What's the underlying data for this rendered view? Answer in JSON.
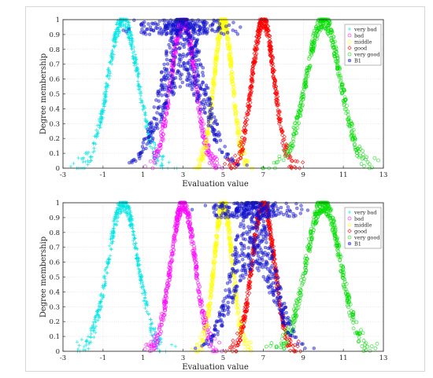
{
  "chart_data": [
    {
      "type": "scatter",
      "xlabel": "Evaluation value",
      "ylabel": "Degree membership",
      "xlim": [
        -3,
        13
      ],
      "ylim": [
        0,
        1
      ],
      "xticks": [
        -3,
        -1,
        1,
        3,
        5,
        7,
        9,
        11,
        13
      ],
      "yticks": [
        0,
        0.1,
        0.2,
        0.3,
        0.4,
        0.5,
        0.6,
        0.7,
        0.8,
        0.9,
        1
      ],
      "grid": true,
      "legend_position": "top-right",
      "series": [
        {
          "name": "very bad",
          "marker": "plus",
          "color": "#00e5e5",
          "center": 0,
          "spread": 0.75
        },
        {
          "name": "bad",
          "marker": "circle",
          "color": "#ff00ff",
          "center": 3,
          "spread": 0.6
        },
        {
          "name": "middle",
          "marker": "circle",
          "color": "#ffff00",
          "center": 5,
          "spread": 0.45
        },
        {
          "name": "good",
          "marker": "diamond",
          "color": "#ff0000",
          "center": 7,
          "spread": 0.55
        },
        {
          "name": "very good",
          "marker": "circle",
          "color": "#00dd00",
          "center": 10,
          "spread": 0.85
        },
        {
          "name": "B1",
          "marker": "star",
          "color": "#1010cc",
          "center": 3,
          "spread": 1.05
        }
      ]
    },
    {
      "type": "scatter",
      "xlabel": "Evaluation value",
      "ylabel": "Degree membership",
      "xlim": [
        -3,
        13
      ],
      "ylim": [
        0,
        1
      ],
      "xticks": [
        -3,
        -1,
        1,
        3,
        5,
        7,
        9,
        11,
        13
      ],
      "yticks": [
        0,
        0.1,
        0.2,
        0.3,
        0.4,
        0.5,
        0.6,
        0.7,
        0.8,
        0.9,
        1
      ],
      "grid": true,
      "legend_position": "top-right",
      "series": [
        {
          "name": "very bad",
          "marker": "plus",
          "color": "#00e5e5",
          "center": 0,
          "spread": 0.75
        },
        {
          "name": "bad",
          "marker": "circle",
          "color": "#ff00ff",
          "center": 3,
          "spread": 0.6
        },
        {
          "name": "middle",
          "marker": "circle",
          "color": "#ffff00",
          "center": 5,
          "spread": 0.45
        },
        {
          "name": "good",
          "marker": "diamond",
          "color": "#ff0000",
          "center": 7,
          "spread": 0.55
        },
        {
          "name": "very good",
          "marker": "circle",
          "color": "#00dd00",
          "center": 10,
          "spread": 0.85
        },
        {
          "name": "B1",
          "marker": "star",
          "color": "#1010cc",
          "center": 6.5,
          "spread": 1.0
        }
      ]
    }
  ]
}
